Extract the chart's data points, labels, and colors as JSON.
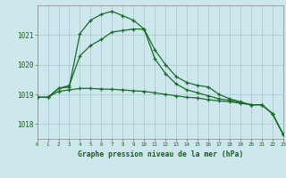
{
  "title": "Graphe pression niveau de la mer (hPa)",
  "bg_color": "#cce8ec",
  "grid_color": "#aaccd4",
  "line_color": "#1a6b2a",
  "xlim": [
    0,
    23
  ],
  "ylim": [
    1017.5,
    1022.0
  ],
  "yticks": [
    1018,
    1019,
    1020,
    1021
  ],
  "xtick_labels": [
    "0",
    "1",
    "2",
    "3",
    "4",
    "5",
    "6",
    "7",
    "8",
    "9",
    "10",
    "11",
    "12",
    "13",
    "14",
    "15",
    "16",
    "17",
    "18",
    "19",
    "20",
    "21",
    "22",
    "23"
  ],
  "series1_x": [
    0,
    1,
    2,
    3,
    4,
    5,
    6,
    7,
    8,
    9,
    10,
    11,
    12,
    13,
    14,
    15,
    16,
    17,
    18,
    19,
    20,
    21,
    22,
    23
  ],
  "series1_y": [
    1018.9,
    1018.9,
    1019.2,
    1019.25,
    1021.05,
    1021.5,
    1021.7,
    1021.8,
    1021.65,
    1021.5,
    1021.2,
    1020.5,
    1020.0,
    1019.6,
    1019.4,
    1019.3,
    1019.25,
    1019.0,
    1018.85,
    1018.75,
    1018.65,
    1018.65,
    1018.35,
    1017.65
  ],
  "series2_x": [
    0,
    1,
    2,
    3,
    4,
    5,
    6,
    7,
    8,
    9,
    10,
    11,
    12,
    13,
    14,
    15,
    16,
    17,
    18,
    19,
    20,
    21,
    22,
    23
  ],
  "series2_y": [
    1018.9,
    1018.9,
    1019.2,
    1019.3,
    1020.3,
    1020.65,
    1020.85,
    1021.1,
    1021.15,
    1021.2,
    1021.2,
    1020.2,
    1019.7,
    1019.35,
    1019.15,
    1019.05,
    1018.95,
    1018.85,
    1018.8,
    1018.72,
    1018.65,
    1018.65,
    1018.35,
    1017.65
  ],
  "series3_x": [
    0,
    1,
    2,
    3,
    4,
    5,
    6,
    7,
    8,
    9,
    10,
    11,
    12,
    13,
    14,
    15,
    16,
    17,
    18,
    19,
    20,
    21,
    22,
    23
  ],
  "series3_y": [
    1018.9,
    1018.9,
    1019.1,
    1019.15,
    1019.2,
    1019.2,
    1019.18,
    1019.17,
    1019.15,
    1019.12,
    1019.1,
    1019.05,
    1019.0,
    1018.95,
    1018.9,
    1018.88,
    1018.82,
    1018.78,
    1018.75,
    1018.7,
    1018.65,
    1018.65,
    1018.35,
    1017.65
  ]
}
